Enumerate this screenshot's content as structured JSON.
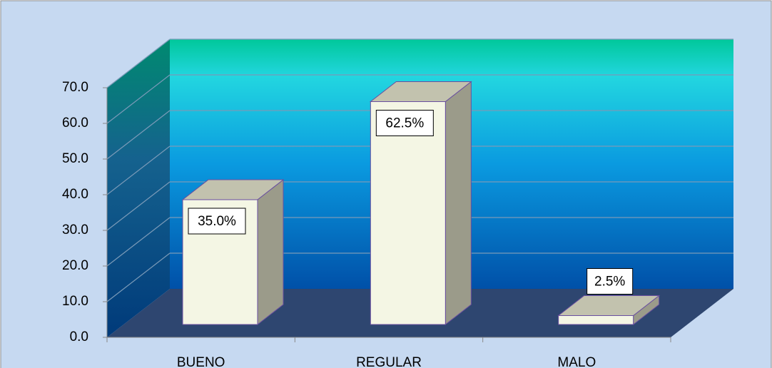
{
  "chart_data": {
    "type": "bar",
    "categories": [
      "BUENO",
      "REGULAR",
      "MALO"
    ],
    "values": [
      35,
      62.5,
      2.5
    ],
    "value_labels": [
      "35.0%",
      "62.5%",
      "2.5%"
    ],
    "color": "#f4f6e4",
    "ylim": [
      0,
      70
    ],
    "yticks": [
      {
        "value": 0,
        "label": "0.0"
      },
      {
        "value": 10,
        "label": "10.0"
      },
      {
        "value": 20,
        "label": "20.0"
      },
      {
        "value": 30,
        "label": "30.0"
      },
      {
        "value": 40,
        "label": "40.0"
      },
      {
        "value": 50,
        "label": "50.0"
      },
      {
        "value": 60,
        "label": "60.0"
      },
      {
        "value": 70,
        "label": "70.0"
      }
    ],
    "grid": true
  }
}
